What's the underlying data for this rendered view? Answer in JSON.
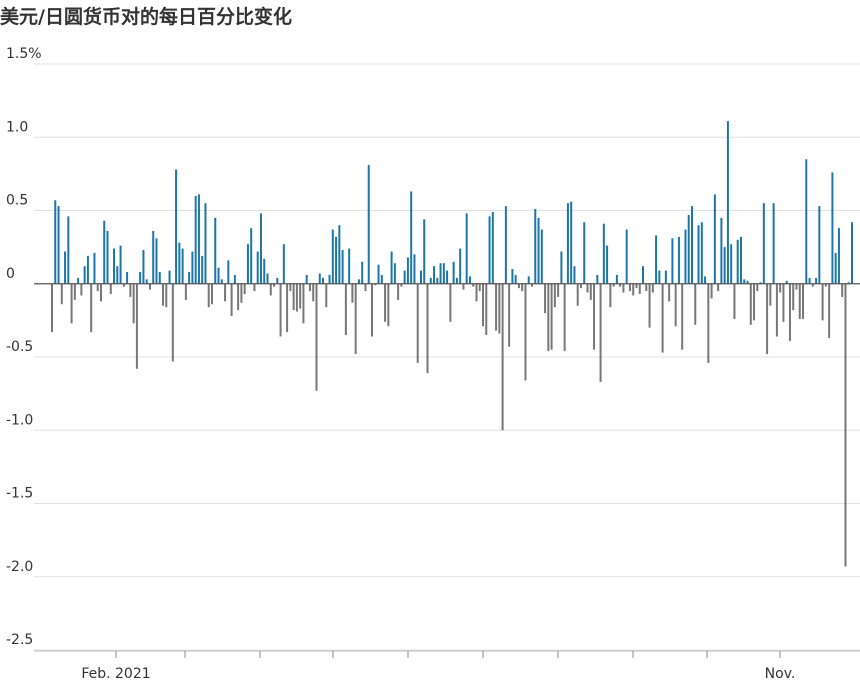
{
  "chart_data": {
    "type": "bar",
    "title": "美元/日圆货币对的每日百分比变化",
    "xlabel": "",
    "ylabel": "",
    "ylim": [
      -2.5,
      1.5
    ],
    "yticks": [
      1.5,
      1.0,
      0.5,
      0,
      -0.5,
      -1.0,
      -1.5,
      -2.0,
      -2.5
    ],
    "ytick_labels": [
      "1.5%",
      "1.0",
      "0.5",
      "0",
      "-0.5",
      "-1.0",
      "-1.5",
      "-2.0",
      "-2.5"
    ],
    "xtick_labels": [
      "Feb. 2021",
      "Nov."
    ],
    "grid": true,
    "colors": {
      "positive": "#1d76a8",
      "negative": "#777777",
      "grid": "#e0e0e0",
      "zero_line": "#555555"
    },
    "series": [
      {
        "values": [
          -0.33,
          0.57,
          0.53,
          -0.14,
          0.22,
          0.46,
          -0.27,
          -0.11,
          0.04,
          -0.08,
          0.12,
          0.19,
          -0.33,
          0.21,
          -0.05,
          -0.12,
          0.43,
          0.36,
          -0.07,
          0.24,
          0.12,
          0.26,
          -0.02,
          0.08,
          -0.09,
          -0.27,
          -0.58,
          0.08,
          0.23,
          0.03,
          -0.04,
          0.36,
          0.31,
          0.08,
          -0.15,
          -0.16,
          0.09,
          -0.53,
          0.78,
          0.28,
          0.24,
          -0.11,
          0.08,
          0.22,
          0.6,
          0.61,
          0.19,
          0.55,
          -0.16,
          -0.14,
          0.45,
          0.11,
          0.03,
          -0.12,
          0.16,
          -0.22,
          0.06,
          -0.18,
          -0.13,
          -0.07,
          0.27,
          0.38,
          -0.05,
          0.22,
          0.48,
          0.17,
          0.07,
          -0.08,
          -0.02,
          0.04,
          -0.36,
          0.27,
          -0.33,
          -0.05,
          -0.18,
          -0.19,
          -0.17,
          -0.27,
          0.06,
          -0.05,
          -0.12,
          -0.73,
          0.07,
          0.04,
          -0.16,
          0.06,
          0.37,
          0.32,
          0.4,
          0.23,
          -0.35,
          0.24,
          -0.13,
          -0.48,
          0.03,
          0.15,
          -0.05,
          0.81,
          -0.36,
          -0.01,
          0.13,
          0.06,
          -0.26,
          -0.29,
          0.22,
          0.14,
          -0.11,
          -0.02,
          0.09,
          0.18,
          0.63,
          0.2,
          -0.54,
          0.09,
          0.44,
          -0.61,
          0.04,
          0.12,
          0.04,
          0.14,
          0.14,
          0.09,
          -0.26,
          0.15,
          0.04,
          0.24,
          -0.04,
          0.48,
          0.05,
          -0.02,
          -0.12,
          -0.05,
          -0.29,
          -0.35,
          0.46,
          0.49,
          -0.32,
          -0.34,
          -1.0,
          0.53,
          -0.43,
          0.1,
          0.06,
          -0.03,
          -0.05,
          -0.66,
          0.05,
          -0.02,
          0.51,
          0.45,
          0.37,
          -0.2,
          -0.46,
          -0.45,
          -0.16,
          -0.09,
          0.22,
          -0.46,
          0.55,
          0.56,
          0.12,
          -0.15,
          -0.03,
          0.42,
          -0.06,
          -0.11,
          -0.45,
          0.06,
          -0.67,
          0.41,
          0.26,
          -0.16,
          -0.02,
          0.06,
          -0.02,
          -0.06,
          0.37,
          -0.05,
          -0.08,
          -0.03,
          -0.07,
          0.12,
          -0.05,
          -0.3,
          -0.06,
          0.33,
          0.09,
          -0.47,
          0.09,
          -0.12,
          0.31,
          -0.29,
          0.32,
          -0.45,
          0.37,
          0.47,
          0.53,
          -0.28,
          0.4,
          0.42,
          0.05,
          -0.54,
          -0.1,
          0.61,
          -0.05,
          0.45,
          0.25,
          1.11,
          0.27,
          -0.24,
          0.3,
          0.32,
          0.03,
          0.02,
          -0.28,
          -0.25,
          -0.05,
          0.01,
          0.55,
          -0.48,
          -0.15,
          0.55,
          -0.36,
          -0.06,
          -0.26,
          0.02,
          -0.39,
          -0.18,
          -0.04,
          -0.24,
          -0.24,
          0.85,
          0.04,
          -0.02,
          0.04,
          0.53,
          -0.25,
          -0.02,
          -0.37,
          0.76,
          0.21,
          0.38,
          -0.09,
          -1.93,
          0.01,
          0.42
        ]
      }
    ]
  }
}
